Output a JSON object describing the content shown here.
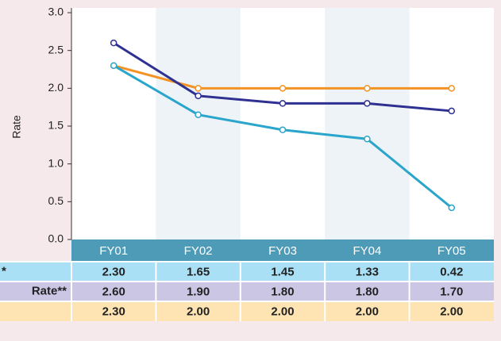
{
  "chart_data": {
    "type": "line",
    "y_label": "Rate",
    "categories": [
      "FY01",
      "FY02",
      "FY03",
      "FY04",
      "FY05"
    ],
    "series": [
      {
        "name": "*",
        "color": "#2aa5cc",
        "row_color": "#a9e0f5",
        "values": [
          2.3,
          1.65,
          1.45,
          1.33,
          0.42
        ],
        "value_labels": [
          "2.30",
          "1.65",
          "1.45",
          "1.33",
          "0.42"
        ]
      },
      {
        "name": "Rate**",
        "color": "#2e3192",
        "row_color": "#cbc6e4",
        "values": [
          2.6,
          1.9,
          1.8,
          1.8,
          1.7
        ],
        "value_labels": [
          "2.60",
          "1.90",
          "1.80",
          "1.80",
          "1.70"
        ]
      },
      {
        "name": null,
        "color": "#f39323",
        "row_color": "#fde4b2",
        "values": [
          2.3,
          2.0,
          2.0,
          2.0,
          2.0
        ],
        "value_labels": [
          "2.30",
          "2.00",
          "2.00",
          "2.00",
          "2.00"
        ]
      }
    ],
    "ylim": [
      0,
      3
    ],
    "yticks": [
      {
        "value": 0,
        "label": "0.0"
      },
      {
        "value": 0.5,
        "label": "0.5"
      },
      {
        "value": 1,
        "label": "1.0"
      },
      {
        "value": 1.5,
        "label": "1.5"
      },
      {
        "value": 2,
        "label": "2.0"
      },
      {
        "value": 2.5,
        "label": "2.5"
      },
      {
        "value": 3,
        "label": "3.0"
      }
    ]
  }
}
